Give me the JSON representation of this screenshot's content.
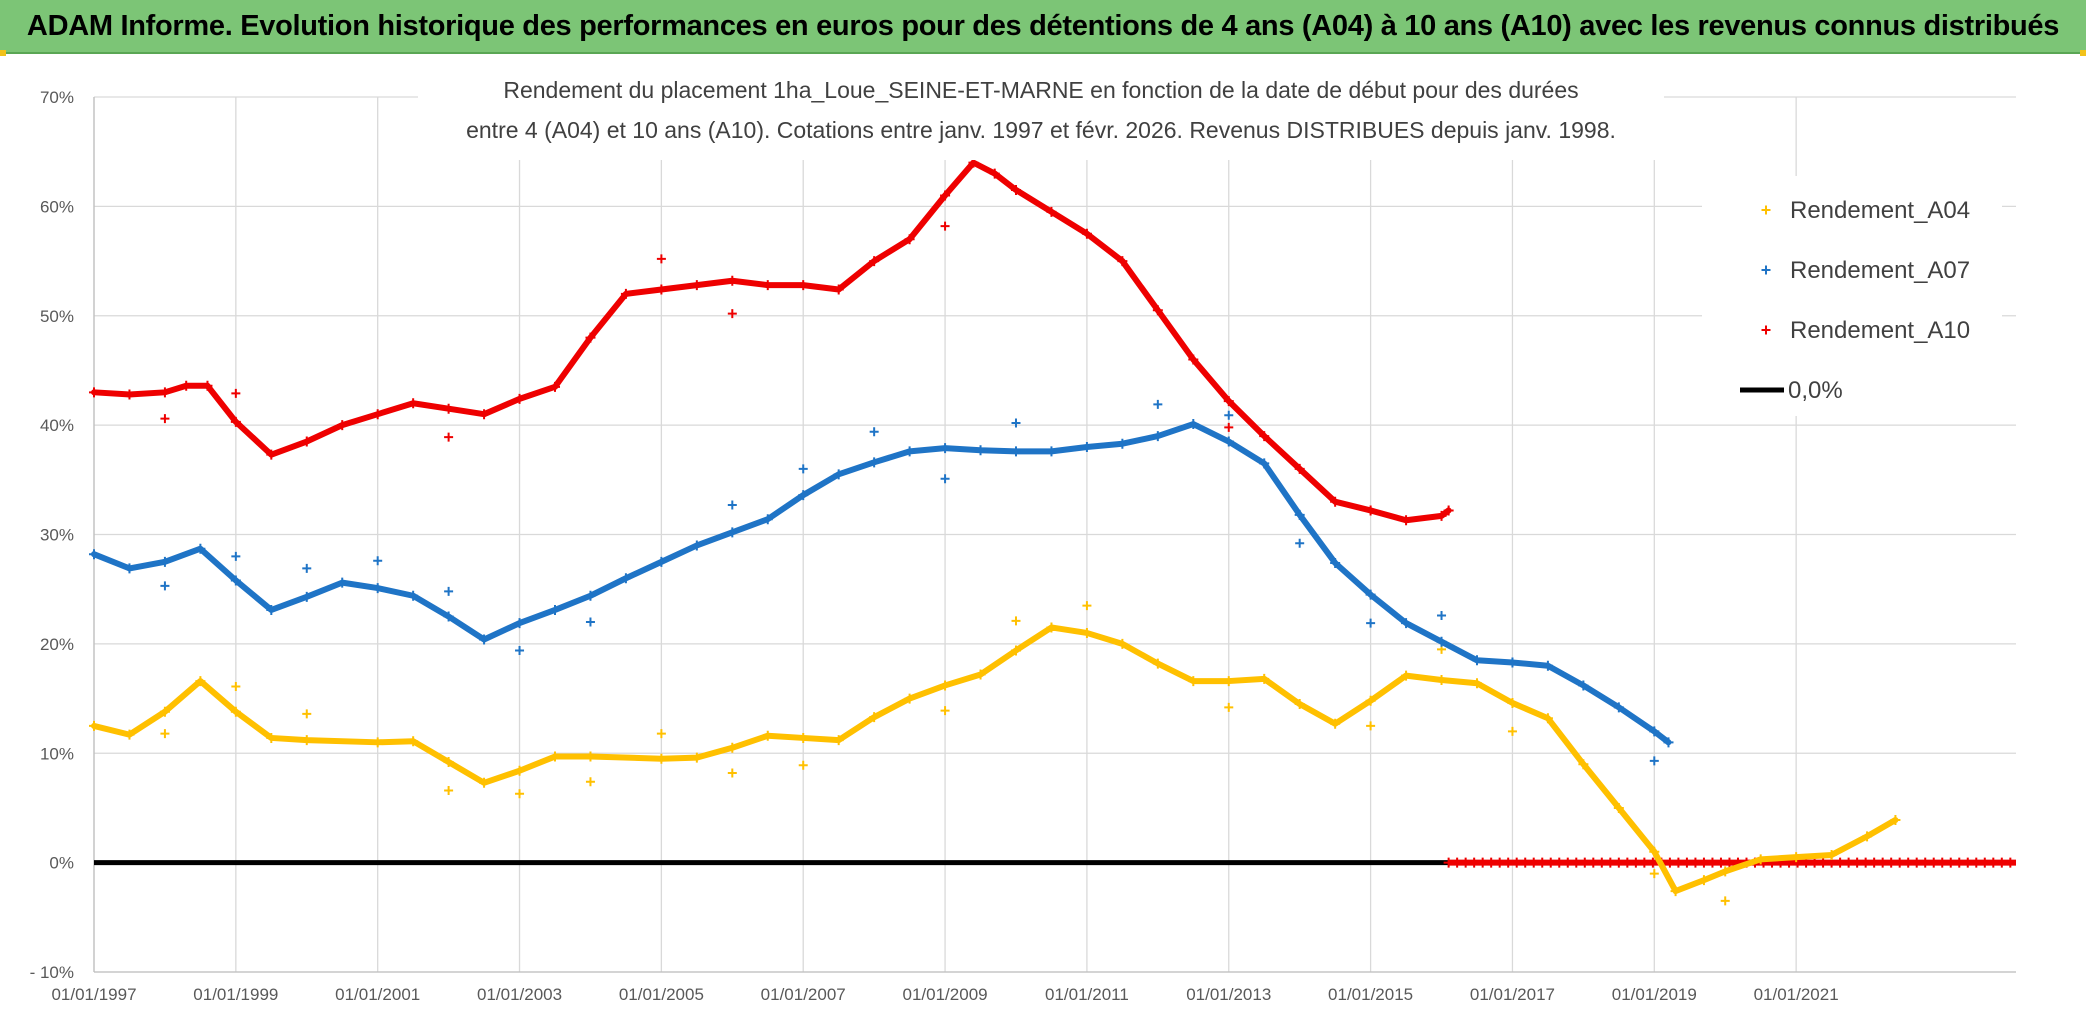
{
  "header": {
    "title": "ADAM Informe. Evolution historique des performances en euros pour des détentions de 4 ans (A04) à 10 ans (A10) avec les revenus connus distribués"
  },
  "chart_data": {
    "type": "line",
    "title_line1": "Rendement du placement 1ha_Loue_SEINE-ET-MARNE en fonction de la date de début pour des durées",
    "title_line2": "entre 4 (A04) et 10 ans (A10). Cotations entre janv. 1997 et févr. 2026. Revenus DISTRIBUES depuis janv. 1998.",
    "xlabel": "",
    "ylabel": "",
    "xlim": [
      1997.0,
      2024.1
    ],
    "ylim": [
      -10,
      70
    ],
    "y_ticks": [
      {
        "v": 70,
        "label": "70%"
      },
      {
        "v": 60,
        "label": "60%"
      },
      {
        "v": 50,
        "label": "50%"
      },
      {
        "v": 40,
        "label": "40%"
      },
      {
        "v": 30,
        "label": "30%"
      },
      {
        "v": 20,
        "label": "20%"
      },
      {
        "v": 10,
        "label": "10%"
      },
      {
        "v": 0,
        "label": "0%"
      },
      {
        "v": -10,
        "label": "- 10%"
      }
    ],
    "x_ticks": [
      {
        "v": 1997,
        "label": "01/01/1997"
      },
      {
        "v": 1999,
        "label": "01/01/1999"
      },
      {
        "v": 2001,
        "label": "01/01/2001"
      },
      {
        "v": 2003,
        "label": "01/01/2003"
      },
      {
        "v": 2005,
        "label": "01/01/2005"
      },
      {
        "v": 2007,
        "label": "01/01/2007"
      },
      {
        "v": 2009,
        "label": "01/01/2009"
      },
      {
        "v": 2011,
        "label": "01/01/2011"
      },
      {
        "v": 2013,
        "label": "01/01/2013"
      },
      {
        "v": 2015,
        "label": "01/01/2015"
      },
      {
        "v": 2017,
        "label": "01/01/2017"
      },
      {
        "v": 2019,
        "label": "01/01/2019"
      },
      {
        "v": 2021,
        "label": "01/01/2021"
      }
    ],
    "grid": true,
    "legend_position": "top-right",
    "series": [
      {
        "name": "Rendement_A04",
        "color": "#ffc000",
        "points": [
          [
            1997.0,
            12.5
          ],
          [
            1997.5,
            11.7
          ],
          [
            1998.0,
            13.8
          ],
          [
            1998.5,
            16.6
          ],
          [
            1999.0,
            13.8
          ],
          [
            1999.5,
            11.4
          ],
          [
            2000.0,
            11.2
          ],
          [
            2001.0,
            11.0
          ],
          [
            2001.5,
            11.1
          ],
          [
            2002.0,
            9.2
          ],
          [
            2002.5,
            7.3
          ],
          [
            2003.0,
            8.4
          ],
          [
            2003.5,
            9.7
          ],
          [
            2004.0,
            9.7
          ],
          [
            2005.0,
            9.5
          ],
          [
            2005.5,
            9.6
          ],
          [
            2006.0,
            10.5
          ],
          [
            2006.5,
            11.6
          ],
          [
            2007.0,
            11.4
          ],
          [
            2007.5,
            11.2
          ],
          [
            2008.0,
            13.3
          ],
          [
            2008.5,
            15.0
          ],
          [
            2009.0,
            16.2
          ],
          [
            2009.5,
            17.2
          ],
          [
            2010.0,
            19.4
          ],
          [
            2010.5,
            21.5
          ],
          [
            2011.0,
            21.0
          ],
          [
            2011.5,
            20.0
          ],
          [
            2012.0,
            18.2
          ],
          [
            2012.5,
            16.6
          ],
          [
            2013.0,
            16.6
          ],
          [
            2013.5,
            16.8
          ],
          [
            2014.0,
            14.5
          ],
          [
            2014.5,
            12.7
          ],
          [
            2015.0,
            14.8
          ],
          [
            2015.5,
            17.1
          ],
          [
            2016.0,
            16.7
          ],
          [
            2016.5,
            16.4
          ],
          [
            2017.0,
            14.6
          ],
          [
            2017.5,
            13.2
          ],
          [
            2018.0,
            9.0
          ],
          [
            2018.5,
            5.0
          ],
          [
            2019.0,
            1.0
          ],
          [
            2019.3,
            -2.6
          ],
          [
            2019.7,
            -1.6
          ],
          [
            2020.0,
            -0.8
          ],
          [
            2020.5,
            0.3
          ],
          [
            2021.0,
            0.5
          ],
          [
            2021.5,
            0.7
          ],
          [
            2022.0,
            2.4
          ],
          [
            2022.4,
            3.9
          ]
        ],
        "outliers": [
          [
            1998.0,
            11.8
          ],
          [
            1999.0,
            16.1
          ],
          [
            2000.0,
            13.6
          ],
          [
            2002.0,
            6.6
          ],
          [
            2003.0,
            6.3
          ],
          [
            2004.0,
            7.4
          ],
          [
            2005.0,
            11.8
          ],
          [
            2006.0,
            8.2
          ],
          [
            2007.0,
            8.9
          ],
          [
            2009.0,
            13.9
          ],
          [
            2010.0,
            22.1
          ],
          [
            2011.0,
            23.5
          ],
          [
            2013.0,
            14.2
          ],
          [
            2015.0,
            12.5
          ],
          [
            2016.0,
            19.5
          ],
          [
            2017.0,
            12.0
          ],
          [
            2019.0,
            -1.0
          ],
          [
            2020.0,
            -3.5
          ]
        ]
      },
      {
        "name": "Rendement_A07",
        "color": "#1f74c6",
        "points": [
          [
            1997.0,
            28.2
          ],
          [
            1997.5,
            26.9
          ],
          [
            1998.0,
            27.5
          ],
          [
            1998.5,
            28.7
          ],
          [
            1999.0,
            25.8
          ],
          [
            1999.5,
            23.1
          ],
          [
            2000.0,
            24.3
          ],
          [
            2000.5,
            25.6
          ],
          [
            2001.0,
            25.1
          ],
          [
            2001.5,
            24.4
          ],
          [
            2002.0,
            22.5
          ],
          [
            2002.5,
            20.4
          ],
          [
            2003.0,
            21.9
          ],
          [
            2003.5,
            23.1
          ],
          [
            2004.0,
            24.4
          ],
          [
            2004.5,
            26.0
          ],
          [
            2005.0,
            27.5
          ],
          [
            2005.5,
            29.0
          ],
          [
            2006.0,
            30.2
          ],
          [
            2006.5,
            31.4
          ],
          [
            2007.0,
            33.6
          ],
          [
            2007.5,
            35.5
          ],
          [
            2008.0,
            36.6
          ],
          [
            2008.5,
            37.6
          ],
          [
            2009.0,
            37.9
          ],
          [
            2009.5,
            37.7
          ],
          [
            2010.0,
            37.6
          ],
          [
            2010.5,
            37.6
          ],
          [
            2011.0,
            38.0
          ],
          [
            2011.5,
            38.3
          ],
          [
            2012.0,
            39.0
          ],
          [
            2012.5,
            40.1
          ],
          [
            2013.0,
            38.5
          ],
          [
            2013.5,
            36.5
          ],
          [
            2014.0,
            31.8
          ],
          [
            2014.5,
            27.4
          ],
          [
            2015.0,
            24.5
          ],
          [
            2015.5,
            21.9
          ],
          [
            2016.0,
            20.2
          ],
          [
            2016.5,
            18.5
          ],
          [
            2017.0,
            18.3
          ],
          [
            2017.5,
            18.0
          ],
          [
            2018.0,
            16.2
          ],
          [
            2018.5,
            14.2
          ],
          [
            2019.0,
            12.0
          ],
          [
            2019.2,
            11.0
          ]
        ],
        "outliers": [
          [
            1998.0,
            25.3
          ],
          [
            1999.0,
            28.0
          ],
          [
            2000.0,
            26.9
          ],
          [
            2001.0,
            27.6
          ],
          [
            2002.0,
            24.8
          ],
          [
            2003.0,
            19.4
          ],
          [
            2004.0,
            22.0
          ],
          [
            2006.0,
            32.7
          ],
          [
            2007.0,
            36.0
          ],
          [
            2008.0,
            39.4
          ],
          [
            2009.0,
            35.1
          ],
          [
            2010.0,
            40.2
          ],
          [
            2012.0,
            41.9
          ],
          [
            2013.0,
            40.9
          ],
          [
            2014.0,
            29.2
          ],
          [
            2015.0,
            21.9
          ],
          [
            2016.0,
            22.6
          ],
          [
            2019.0,
            9.3
          ]
        ]
      },
      {
        "name": "Rendement_A10",
        "color": "#ee0000",
        "points": [
          [
            1997.0,
            43.0
          ],
          [
            1997.5,
            42.8
          ],
          [
            1998.0,
            43.0
          ],
          [
            1998.3,
            43.6
          ],
          [
            1998.6,
            43.6
          ],
          [
            1999.0,
            40.3
          ],
          [
            1999.5,
            37.3
          ],
          [
            2000.0,
            38.5
          ],
          [
            2000.5,
            40.0
          ],
          [
            2001.0,
            41.0
          ],
          [
            2001.5,
            42.0
          ],
          [
            2002.0,
            41.5
          ],
          [
            2002.5,
            41.0
          ],
          [
            2003.0,
            42.4
          ],
          [
            2003.5,
            43.5
          ],
          [
            2004.0,
            48.0
          ],
          [
            2004.5,
            52.0
          ],
          [
            2005.0,
            52.4
          ],
          [
            2005.5,
            52.8
          ],
          [
            2006.0,
            53.2
          ],
          [
            2006.5,
            52.8
          ],
          [
            2007.0,
            52.8
          ],
          [
            2007.5,
            52.4
          ],
          [
            2008.0,
            55.0
          ],
          [
            2008.5,
            57.0
          ],
          [
            2009.0,
            61.0
          ],
          [
            2009.4,
            64.0
          ],
          [
            2009.7,
            63.0
          ],
          [
            2010.0,
            61.5
          ],
          [
            2010.5,
            59.5
          ],
          [
            2011.0,
            57.5
          ],
          [
            2011.5,
            55.0
          ],
          [
            2012.0,
            50.5
          ],
          [
            2012.5,
            46.0
          ],
          [
            2013.0,
            42.2
          ],
          [
            2013.5,
            39.0
          ],
          [
            2014.0,
            36.0
          ],
          [
            2014.5,
            33.0
          ],
          [
            2015.0,
            32.2
          ],
          [
            2015.5,
            31.3
          ],
          [
            2016.0,
            31.7
          ],
          [
            2016.1,
            32.2
          ]
        ],
        "outliers": [
          [
            1998.0,
            40.6
          ],
          [
            1999.0,
            42.9
          ],
          [
            2002.0,
            38.9
          ],
          [
            2005.0,
            55.2
          ],
          [
            2006.0,
            50.2
          ],
          [
            2009.0,
            58.2
          ],
          [
            2013.0,
            39.8
          ]
        ]
      },
      {
        "name": "0,0%",
        "color": "#000000",
        "points": [
          [
            1997.0,
            0.0
          ],
          [
            2016.1,
            0.0
          ]
        ]
      }
    ],
    "a10_zero_segment": {
      "from": 2016.1,
      "to": 2024.1,
      "value": 0.0
    }
  }
}
